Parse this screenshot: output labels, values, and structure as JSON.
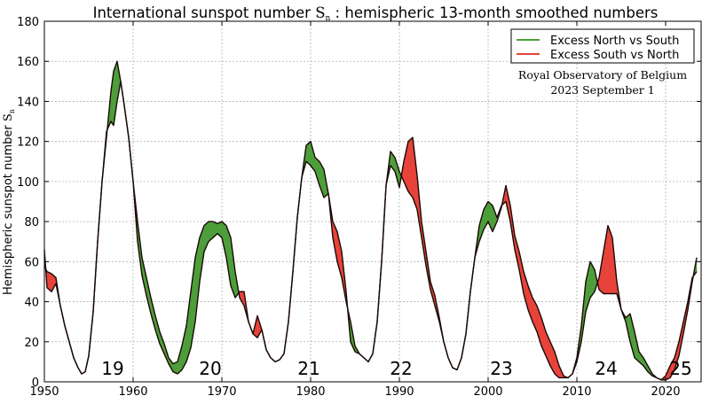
{
  "chart_data": {
    "type": "area",
    "title_main": "International sunspot number ",
    "title_symbol": "S",
    "title_sub": "n",
    "title_rest": " : hemispheric 13-month smoothed numbers",
    "ylabel_main": "Hemispheric sunspot number ",
    "ylabel_symbol": "S",
    "ylabel_sub": "n",
    "xlim": [
      1950,
      2024
    ],
    "ylim": [
      0,
      180
    ],
    "xticks": [
      1950,
      1960,
      1970,
      1980,
      1990,
      2000,
      2010,
      2020
    ],
    "yticks": [
      0,
      20,
      40,
      60,
      80,
      100,
      120,
      140,
      160,
      180
    ],
    "grid": true,
    "legend_position": "top-right",
    "colors": {
      "north_excess": "#4d9e3a",
      "south_excess": "#e8433a",
      "line": "#1a0a06",
      "grid": "#b0b0b0"
    },
    "series": [
      {
        "name": "Excess North vs South",
        "color": "#4d9e3a"
      },
      {
        "name": "Excess South vs North",
        "color": "#e8433a"
      }
    ],
    "annotations": [
      "Royal Observatory of Belgium",
      "2023 September 1"
    ],
    "cycle_labels": [
      {
        "text": "19",
        "x": 1957.7
      },
      {
        "text": "20",
        "x": 1968.7
      },
      {
        "text": "21",
        "x": 1979.8
      },
      {
        "text": "22",
        "x": 1990.2
      },
      {
        "text": "23",
        "x": 2001.5
      },
      {
        "text": "24",
        "x": 2013.3
      },
      {
        "text": "25",
        "x": 2021.7
      }
    ],
    "north": [
      [
        1950.0,
        66
      ],
      [
        1950.3,
        47
      ],
      [
        1950.8,
        45
      ],
      [
        1951.3,
        49
      ],
      [
        1951.8,
        38
      ],
      [
        1952.3,
        28
      ],
      [
        1952.8,
        20
      ],
      [
        1953.3,
        12
      ],
      [
        1953.8,
        7
      ],
      [
        1954.2,
        4
      ],
      [
        1954.6,
        5
      ],
      [
        1955.0,
        13
      ],
      [
        1955.5,
        35
      ],
      [
        1956.0,
        70
      ],
      [
        1956.5,
        100
      ],
      [
        1957.0,
        122
      ],
      [
        1957.5,
        145
      ],
      [
        1957.8,
        155
      ],
      [
        1958.2,
        160
      ],
      [
        1958.6,
        150
      ],
      [
        1959.0,
        138
      ],
      [
        1959.5,
        122
      ],
      [
        1960.0,
        100
      ],
      [
        1960.5,
        80
      ],
      [
        1961.0,
        62
      ],
      [
        1961.5,
        52
      ],
      [
        1962.0,
        42
      ],
      [
        1962.5,
        33
      ],
      [
        1963.0,
        25
      ],
      [
        1963.5,
        19
      ],
      [
        1964.0,
        12
      ],
      [
        1964.5,
        9
      ],
      [
        1965.0,
        10
      ],
      [
        1965.5,
        18
      ],
      [
        1966.0,
        28
      ],
      [
        1966.5,
        45
      ],
      [
        1967.0,
        62
      ],
      [
        1967.5,
        72
      ],
      [
        1968.0,
        78
      ],
      [
        1968.5,
        80
      ],
      [
        1969.0,
        80
      ],
      [
        1969.5,
        79
      ],
      [
        1970.0,
        80
      ],
      [
        1970.5,
        78
      ],
      [
        1971.0,
        72
      ],
      [
        1971.5,
        55
      ],
      [
        1972.0,
        42
      ],
      [
        1972.5,
        38
      ],
      [
        1973.0,
        30
      ],
      [
        1973.5,
        24
      ],
      [
        1974.0,
        22
      ],
      [
        1974.5,
        26
      ],
      [
        1975.0,
        16
      ],
      [
        1975.5,
        12
      ],
      [
        1976.0,
        10
      ],
      [
        1976.5,
        11
      ],
      [
        1977.0,
        14
      ],
      [
        1977.5,
        30
      ],
      [
        1978.0,
        55
      ],
      [
        1978.5,
        82
      ],
      [
        1979.0,
        102
      ],
      [
        1979.5,
        118
      ],
      [
        1980.0,
        120
      ],
      [
        1980.5,
        112
      ],
      [
        1981.0,
        110
      ],
      [
        1981.5,
        106
      ],
      [
        1982.0,
        94
      ],
      [
        1982.5,
        72
      ],
      [
        1983.0,
        60
      ],
      [
        1983.5,
        52
      ],
      [
        1984.0,
        40
      ],
      [
        1984.5,
        30
      ],
      [
        1985.0,
        18
      ],
      [
        1985.5,
        14
      ],
      [
        1986.0,
        12
      ],
      [
        1986.5,
        10
      ],
      [
        1987.0,
        14
      ],
      [
        1987.5,
        30
      ],
      [
        1988.0,
        60
      ],
      [
        1988.5,
        98
      ],
      [
        1989.0,
        115
      ],
      [
        1989.5,
        112
      ],
      [
        1990.0,
        105
      ],
      [
        1990.5,
        100
      ],
      [
        1991.0,
        95
      ],
      [
        1991.5,
        92
      ],
      [
        1992.0,
        86
      ],
      [
        1992.5,
        72
      ],
      [
        1993.0,
        58
      ],
      [
        1993.5,
        46
      ],
      [
        1994.0,
        38
      ],
      [
        1994.5,
        30
      ],
      [
        1995.0,
        20
      ],
      [
        1995.5,
        12
      ],
      [
        1996.0,
        7
      ],
      [
        1996.5,
        6
      ],
      [
        1997.0,
        12
      ],
      [
        1997.5,
        24
      ],
      [
        1998.0,
        45
      ],
      [
        1998.5,
        62
      ],
      [
        1999.0,
        78
      ],
      [
        1999.5,
        86
      ],
      [
        2000.0,
        90
      ],
      [
        2000.5,
        88
      ],
      [
        2001.0,
        82
      ],
      [
        2001.5,
        88
      ],
      [
        2002.0,
        90
      ],
      [
        2002.5,
        80
      ],
      [
        2003.0,
        66
      ],
      [
        2003.5,
        56
      ],
      [
        2004.0,
        44
      ],
      [
        2004.5,
        36
      ],
      [
        2005.0,
        30
      ],
      [
        2005.5,
        25
      ],
      [
        2006.0,
        18
      ],
      [
        2006.5,
        13
      ],
      [
        2007.0,
        8
      ],
      [
        2007.5,
        4
      ],
      [
        2008.0,
        2
      ],
      [
        2008.5,
        2
      ],
      [
        2009.0,
        2
      ],
      [
        2009.5,
        4
      ],
      [
        2010.0,
        12
      ],
      [
        2010.5,
        28
      ],
      [
        2011.0,
        50
      ],
      [
        2011.5,
        60
      ],
      [
        2012.0,
        56
      ],
      [
        2012.5,
        46
      ],
      [
        2013.0,
        44
      ],
      [
        2013.5,
        44
      ],
      [
        2014.0,
        44
      ],
      [
        2014.5,
        44
      ],
      [
        2015.0,
        36
      ],
      [
        2015.5,
        32
      ],
      [
        2016.0,
        34
      ],
      [
        2016.5,
        25
      ],
      [
        2017.0,
        15
      ],
      [
        2017.5,
        12
      ],
      [
        2018.0,
        8
      ],
      [
        2018.5,
        4
      ],
      [
        2019.0,
        2
      ],
      [
        2019.5,
        1
      ],
      [
        2020.0,
        1
      ],
      [
        2020.5,
        2
      ],
      [
        2021.0,
        6
      ],
      [
        2021.5,
        13
      ],
      [
        2022.0,
        24
      ],
      [
        2022.5,
        36
      ],
      [
        2023.0,
        50
      ],
      [
        2023.5,
        62
      ]
    ],
    "south": [
      [
        1950.0,
        58
      ],
      [
        1950.3,
        55
      ],
      [
        1950.8,
        54
      ],
      [
        1951.3,
        52
      ],
      [
        1951.8,
        38
      ],
      [
        1952.3,
        28
      ],
      [
        1952.8,
        20
      ],
      [
        1953.3,
        12
      ],
      [
        1953.8,
        7
      ],
      [
        1954.2,
        4
      ],
      [
        1954.6,
        5
      ],
      [
        1955.0,
        13
      ],
      [
        1955.5,
        35
      ],
      [
        1956.0,
        70
      ],
      [
        1956.5,
        100
      ],
      [
        1957.0,
        125
      ],
      [
        1957.5,
        130
      ],
      [
        1957.8,
        128
      ],
      [
        1958.2,
        140
      ],
      [
        1958.6,
        150
      ],
      [
        1959.0,
        138
      ],
      [
        1959.5,
        122
      ],
      [
        1960.0,
        100
      ],
      [
        1960.5,
        70
      ],
      [
        1961.0,
        53
      ],
      [
        1961.5,
        43
      ],
      [
        1962.0,
        34
      ],
      [
        1962.5,
        26
      ],
      [
        1963.0,
        19
      ],
      [
        1963.5,
        14
      ],
      [
        1964.0,
        9
      ],
      [
        1964.5,
        5
      ],
      [
        1965.0,
        4
      ],
      [
        1965.5,
        6
      ],
      [
        1966.0,
        10
      ],
      [
        1966.5,
        17
      ],
      [
        1967.0,
        30
      ],
      [
        1967.5,
        50
      ],
      [
        1968.0,
        65
      ],
      [
        1968.5,
        70
      ],
      [
        1969.0,
        72
      ],
      [
        1969.5,
        74
      ],
      [
        1970.0,
        72
      ],
      [
        1970.5,
        62
      ],
      [
        1971.0,
        48
      ],
      [
        1971.5,
        42
      ],
      [
        1972.0,
        45
      ],
      [
        1972.5,
        45
      ],
      [
        1973.0,
        30
      ],
      [
        1973.5,
        24
      ],
      [
        1974.0,
        33
      ],
      [
        1974.5,
        26
      ],
      [
        1975.0,
        16
      ],
      [
        1975.5,
        12
      ],
      [
        1976.0,
        10
      ],
      [
        1976.5,
        11
      ],
      [
        1977.0,
        14
      ],
      [
        1977.5,
        30
      ],
      [
        1978.0,
        55
      ],
      [
        1978.5,
        82
      ],
      [
        1979.0,
        102
      ],
      [
        1979.5,
        110
      ],
      [
        1980.0,
        108
      ],
      [
        1980.5,
        105
      ],
      [
        1981.0,
        98
      ],
      [
        1981.5,
        92
      ],
      [
        1982.0,
        94
      ],
      [
        1982.5,
        80
      ],
      [
        1983.0,
        75
      ],
      [
        1983.5,
        65
      ],
      [
        1984.0,
        45
      ],
      [
        1984.5,
        20
      ],
      [
        1985.0,
        15
      ],
      [
        1985.5,
        14
      ],
      [
        1986.0,
        12
      ],
      [
        1986.5,
        10
      ],
      [
        1987.0,
        14
      ],
      [
        1987.5,
        30
      ],
      [
        1988.0,
        60
      ],
      [
        1988.5,
        98
      ],
      [
        1989.0,
        108
      ],
      [
        1989.5,
        105
      ],
      [
        1990.0,
        97
      ],
      [
        1990.5,
        110
      ],
      [
        1991.0,
        120
      ],
      [
        1991.5,
        122
      ],
      [
        1992.0,
        103
      ],
      [
        1992.5,
        80
      ],
      [
        1993.0,
        65
      ],
      [
        1993.5,
        50
      ],
      [
        1994.0,
        43
      ],
      [
        1994.5,
        32
      ],
      [
        1995.0,
        20
      ],
      [
        1995.5,
        12
      ],
      [
        1996.0,
        7
      ],
      [
        1996.5,
        6
      ],
      [
        1997.0,
        12
      ],
      [
        1997.5,
        24
      ],
      [
        1998.0,
        45
      ],
      [
        1998.5,
        62
      ],
      [
        1999.0,
        70
      ],
      [
        1999.5,
        76
      ],
      [
        2000.0,
        80
      ],
      [
        2000.5,
        75
      ],
      [
        2001.0,
        80
      ],
      [
        2001.5,
        87
      ],
      [
        2002.0,
        98
      ],
      [
        2002.5,
        88
      ],
      [
        2003.0,
        73
      ],
      [
        2003.5,
        65
      ],
      [
        2004.0,
        55
      ],
      [
        2004.5,
        48
      ],
      [
        2005.0,
        42
      ],
      [
        2005.5,
        38
      ],
      [
        2006.0,
        32
      ],
      [
        2006.5,
        25
      ],
      [
        2007.0,
        20
      ],
      [
        2007.5,
        15
      ],
      [
        2008.0,
        8
      ],
      [
        2008.5,
        3
      ],
      [
        2009.0,
        2
      ],
      [
        2009.5,
        4
      ],
      [
        2010.0,
        10
      ],
      [
        2010.5,
        20
      ],
      [
        2011.0,
        35
      ],
      [
        2011.5,
        42
      ],
      [
        2012.0,
        45
      ],
      [
        2012.5,
        52
      ],
      [
        2013.0,
        65
      ],
      [
        2013.5,
        78
      ],
      [
        2014.0,
        72
      ],
      [
        2014.5,
        50
      ],
      [
        2015.0,
        36
      ],
      [
        2015.5,
        30
      ],
      [
        2016.0,
        20
      ],
      [
        2016.5,
        12
      ],
      [
        2017.0,
        10
      ],
      [
        2017.5,
        8
      ],
      [
        2018.0,
        5
      ],
      [
        2018.5,
        3
      ],
      [
        2019.0,
        2
      ],
      [
        2019.5,
        1
      ],
      [
        2020.0,
        3
      ],
      [
        2020.5,
        8
      ],
      [
        2021.0,
        12
      ],
      [
        2021.5,
        20
      ],
      [
        2022.0,
        30
      ],
      [
        2022.5,
        40
      ],
      [
        2023.0,
        52
      ],
      [
        2023.5,
        55
      ]
    ]
  }
}
